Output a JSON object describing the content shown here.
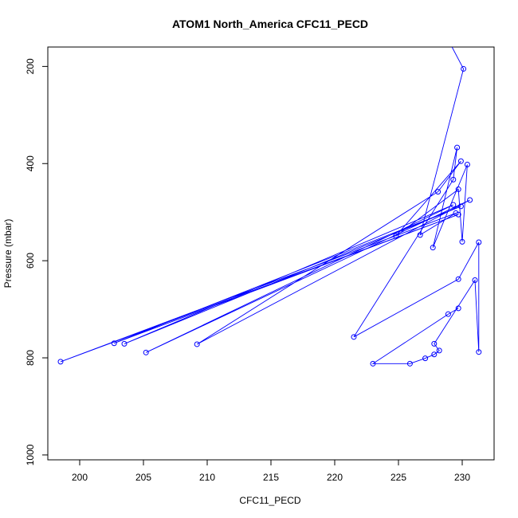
{
  "chart_data": {
    "type": "scatter",
    "title": "ATOM1 North_America CFC11_PECD",
    "xlabel": "CFC11_PECD",
    "ylabel": "Pressure (mbar)",
    "xlim": [
      197.5,
      232.5
    ],
    "ylim": [
      1010,
      160
    ],
    "y_reversed": true,
    "x_ticks": [
      200,
      205,
      210,
      215,
      220,
      225,
      230
    ],
    "y_ticks": [
      200,
      400,
      600,
      800,
      1000
    ],
    "grid": false,
    "series": [
      {
        "color": "#0000ff",
        "marker": "open-circle",
        "connected": true,
        "points": [
          [
            229.2,
            160
          ],
          [
            230.1,
            205
          ],
          [
            229.6,
            367
          ],
          [
            229.9,
            395
          ],
          [
            230.4,
            402
          ],
          [
            229.3,
            433
          ],
          [
            229.7,
            453
          ],
          [
            228.1,
            458
          ],
          [
            230.6,
            475
          ],
          [
            229.3,
            485
          ],
          [
            229.9,
            488
          ],
          [
            229.5,
            502
          ],
          [
            229.7,
            505
          ],
          [
            224.8,
            549
          ],
          [
            226.7,
            547
          ],
          [
            231.3,
            562
          ],
          [
            230.0,
            561
          ],
          [
            227.7,
            573
          ],
          [
            229.7,
            638
          ],
          [
            231.0,
            640
          ],
          [
            229.7,
            698
          ],
          [
            228.9,
            710
          ],
          [
            221.5,
            757
          ],
          [
            227.8,
            771
          ],
          [
            228.2,
            785
          ],
          [
            227.8,
            793
          ],
          [
            227.1,
            801
          ],
          [
            231.3,
            788
          ],
          [
            225.9,
            812
          ],
          [
            223.0,
            812
          ],
          [
            198.5,
            808
          ],
          [
            202.7,
            770
          ],
          [
            203.5,
            771
          ],
          [
            205.2,
            789
          ],
          [
            209.2,
            772
          ]
        ],
        "path_order": [
          0,
          1,
          14,
          11,
          30,
          12,
          31,
          10,
          32,
          9,
          33,
          8,
          34,
          7,
          3,
          13,
          6,
          16,
          4,
          17,
          2,
          5,
          22,
          18,
          15,
          27,
          19,
          23,
          24,
          25,
          26,
          28,
          29,
          21,
          20
        ]
      }
    ]
  }
}
